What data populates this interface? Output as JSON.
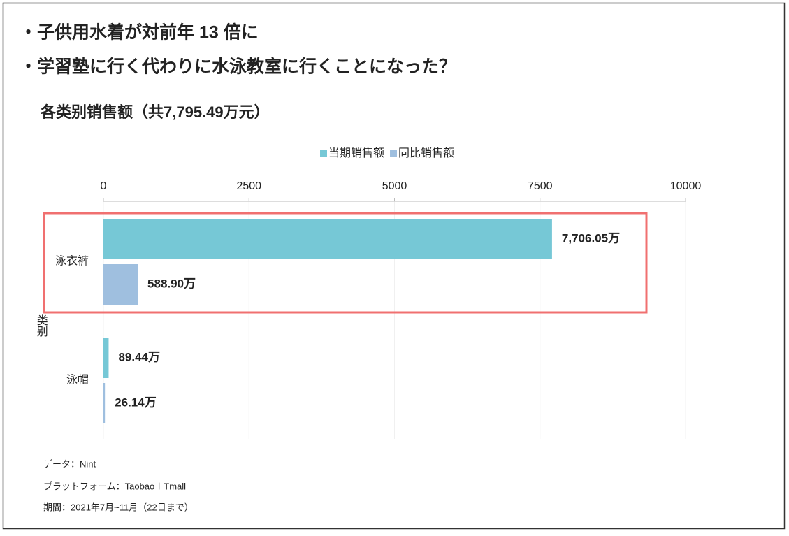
{
  "bullets": [
    "・子供用水着が対前年 13 倍に",
    "・学習塾に行く代わりに水泳教室に行くことになった？"
  ],
  "chart_data": {
    "type": "bar",
    "orientation": "horizontal",
    "title": "各类别销售额（共7,795.49万元）",
    "y_label": "类别",
    "categories": [
      "泳衣裤",
      "泳帽"
    ],
    "series": [
      {
        "name": "当期销售额",
        "color": "#76c8d6",
        "values": [
          7706.05,
          89.44
        ],
        "value_labels": [
          "7,706.05万",
          "89.44万"
        ]
      },
      {
        "name": "同比销售额",
        "color": "#9fbfdf",
        "values": [
          588.9,
          26.14
        ],
        "value_labels": [
          "588.90万",
          "26.14万"
        ]
      }
    ],
    "xlim": [
      0,
      10000
    ],
    "xticks": [
      0,
      2500,
      5000,
      7500,
      10000
    ],
    "grid": true,
    "legend": "top"
  },
  "notes": [
    "データ：Nint",
    "プラットフォーム：Taobao＋Tmall",
    "期間：2021年7月~11月（22日まで）"
  ]
}
